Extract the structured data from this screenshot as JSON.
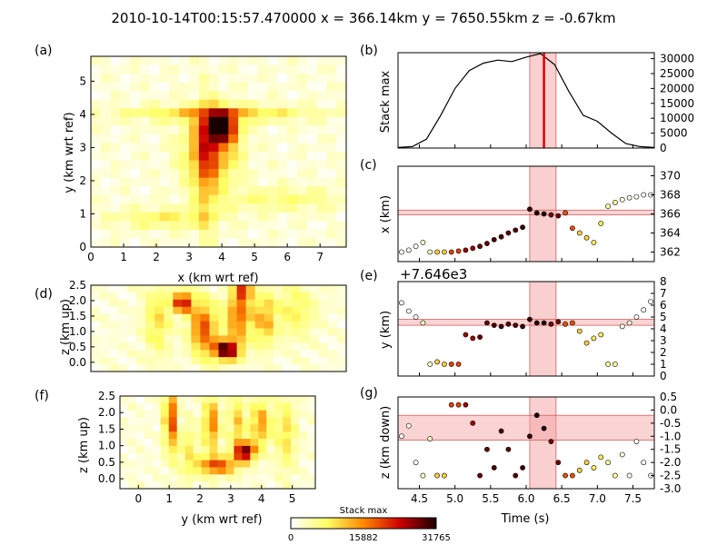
{
  "title": "2010-10-14T00:15:57.470000   x = 366.14km  y = 7650.55km  z = -0.67km",
  "colorbar": {
    "label": "Stack max",
    "ticks": [
      "0",
      "15882",
      "31765"
    ],
    "colors": [
      "#ffffff",
      "#ffff66",
      "#ff8800",
      "#cc0000",
      "#1a0000"
    ]
  },
  "panels": {
    "a": {
      "tag": "(a)",
      "xlabel": "x (km wrt ref)",
      "ylabel": "y (km wrt ref)",
      "xticks": [
        "0",
        "1",
        "2",
        "3",
        "4",
        "5",
        "6",
        "7"
      ],
      "yticks": [
        "0",
        "1",
        "2",
        "3",
        "4",
        "5"
      ]
    },
    "d": {
      "tag": "(d)",
      "ylabel": "z (km up)",
      "yticks": [
        "0.0",
        "0.5",
        "1.0",
        "1.5",
        "2.0",
        "2.5"
      ]
    },
    "f": {
      "tag": "(f)",
      "xlabel": "y (km wrt ref)",
      "ylabel": "z (km up)",
      "xticks": [
        "0",
        "1",
        "2",
        "3",
        "4",
        "5"
      ],
      "yticks": [
        "0.0",
        "0.5",
        "1.0",
        "1.5",
        "2.0",
        "2.5"
      ]
    },
    "b": {
      "tag": "(b)",
      "ylabel": "Stack max",
      "yticks": [
        "0",
        "5000",
        "10000",
        "15000",
        "20000",
        "25000",
        "30000"
      ]
    },
    "c": {
      "tag": "(c)",
      "ylabel": "x (km)",
      "yticks": [
        "362",
        "364",
        "366",
        "368",
        "370"
      ]
    },
    "e": {
      "tag": "(e)",
      "ylabel": "y (km)",
      "offset": "+7.646e3",
      "yticks": [
        "0",
        "1",
        "2",
        "3",
        "4",
        "5",
        "6",
        "7",
        "8"
      ]
    },
    "g": {
      "tag": "(g)",
      "ylabel": "z (km down)",
      "xlabel": "Time (s)",
      "xticks": [
        "4.5",
        "5.0",
        "5.5",
        "6.0",
        "6.5",
        "7.0",
        "7.5"
      ],
      "yticks": [
        "-3.0",
        "-2.5",
        "-2.0",
        "-1.5",
        "-1.0",
        "-0.5",
        "0.0",
        "0.5"
      ]
    }
  },
  "chart_data": [
    {
      "type": "line",
      "panel": "b",
      "ylabel": "Stack max",
      "ylim": [
        0,
        32000
      ],
      "xlim": [
        4.2,
        7.8
      ],
      "x": [
        4.2,
        4.4,
        4.6,
        4.8,
        5.0,
        5.2,
        5.4,
        5.6,
        5.8,
        6.0,
        6.2,
        6.4,
        6.6,
        6.8,
        7.0,
        7.2,
        7.4,
        7.6,
        7.8
      ],
      "values": [
        200,
        500,
        3000,
        11000,
        20000,
        26000,
        28500,
        29500,
        29000,
        30500,
        31700,
        28000,
        19000,
        11000,
        9000,
        5000,
        1500,
        500,
        200
      ],
      "marker_time": 6.25,
      "window": [
        6.05,
        6.42
      ]
    },
    {
      "type": "scatter",
      "panel": "c",
      "ylabel": "x (km)",
      "ylim": [
        361,
        371
      ],
      "reference": 366.14,
      "band": [
        365.9,
        366.4
      ],
      "window": [
        6.05,
        6.42
      ],
      "x": [
        4.25,
        4.35,
        4.45,
        4.55,
        4.65,
        4.75,
        4.85,
        4.95,
        5.05,
        5.15,
        5.25,
        5.35,
        5.45,
        5.55,
        5.65,
        5.75,
        5.85,
        5.95,
        6.05,
        6.15,
        6.25,
        6.35,
        6.45,
        6.55,
        6.65,
        6.75,
        6.85,
        6.95,
        7.05,
        7.15,
        7.25,
        7.35,
        7.45,
        7.55,
        7.65,
        7.75
      ],
      "y": [
        362,
        362.2,
        362.6,
        363,
        362,
        362,
        362,
        362,
        362.1,
        362.2,
        362.4,
        362.6,
        362.9,
        363.3,
        363.6,
        364,
        364.3,
        364.6,
        366.5,
        366.1,
        366.0,
        365.9,
        365.8,
        366.1,
        364.5,
        364,
        363.5,
        363,
        365,
        366.8,
        367.2,
        367.5,
        367.7,
        367.8,
        368,
        368
      ]
    },
    {
      "type": "scatter",
      "panel": "e",
      "ylabel": "y (km)",
      "ylim": [
        0,
        8
      ],
      "offset": 7646,
      "reference": 4.55,
      "band": [
        4.3,
        4.8
      ],
      "window": [
        6.05,
        6.42
      ],
      "x": [
        4.25,
        4.35,
        4.45,
        4.55,
        4.65,
        4.75,
        4.85,
        4.95,
        5.05,
        5.15,
        5.25,
        5.35,
        5.45,
        5.55,
        5.65,
        5.75,
        5.85,
        5.95,
        6.05,
        6.15,
        6.25,
        6.35,
        6.45,
        6.55,
        6.65,
        6.75,
        6.85,
        6.95,
        7.05,
        7.15,
        7.25,
        7.35,
        7.45,
        7.55,
        7.65,
        7.75
      ],
      "y": [
        6.2,
        5.5,
        5,
        4.5,
        1,
        1.2,
        1,
        1,
        1,
        3.5,
        3.2,
        3.3,
        4.5,
        4.3,
        4.2,
        4.4,
        4.3,
        4.2,
        4.8,
        4.5,
        4.5,
        4.4,
        4.6,
        4.4,
        4.5,
        3.8,
        2.8,
        3.2,
        3.5,
        1,
        1,
        4.2,
        4.5,
        5,
        5.6,
        6.3
      ]
    },
    {
      "type": "scatter",
      "panel": "g",
      "ylabel": "z (km down)",
      "xlabel": "Time (s)",
      "ylim": [
        -3.0,
        0.5
      ],
      "xlim": [
        4.2,
        7.8
      ],
      "reference": -0.67,
      "band": [
        -1.15,
        -0.2
      ],
      "window": [
        6.05,
        6.42
      ],
      "x": [
        4.25,
        4.35,
        4.45,
        4.55,
        4.65,
        4.75,
        4.85,
        4.95,
        5.05,
        5.15,
        5.25,
        5.35,
        5.45,
        5.55,
        5.65,
        5.75,
        5.85,
        5.95,
        6.05,
        6.15,
        6.25,
        6.35,
        6.45,
        6.55,
        6.65,
        6.75,
        6.85,
        6.95,
        7.05,
        7.15,
        7.25,
        7.35,
        7.45,
        7.55,
        7.65,
        7.75
      ],
      "y": [
        -1,
        -0.6,
        -2.0,
        -2.5,
        -1.1,
        -2.5,
        -2.5,
        0.2,
        0.2,
        0.2,
        -0.5,
        -2.5,
        -1.5,
        -2.2,
        -0.8,
        -1.5,
        -2.5,
        -2.2,
        -1.0,
        -0.2,
        -0.7,
        -1.2,
        -2.0,
        -2.5,
        -2.5,
        -2.3,
        -2.0,
        -2.2,
        -1.8,
        -2.0,
        -2.5,
        -1.7,
        -2.5,
        -1.2,
        -2.0,
        -2.5
      ]
    }
  ]
}
